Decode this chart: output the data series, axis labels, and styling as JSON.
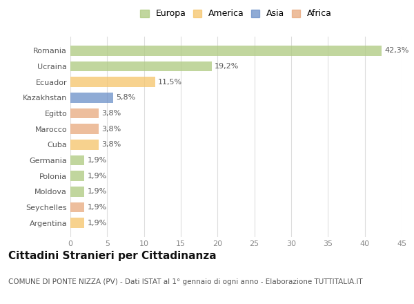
{
  "categories": [
    "Romania",
    "Ucraina",
    "Ecuador",
    "Kazakhstan",
    "Egitto",
    "Marocco",
    "Cuba",
    "Germania",
    "Polonia",
    "Moldova",
    "Seychelles",
    "Argentina"
  ],
  "values": [
    42.3,
    19.2,
    11.5,
    5.8,
    3.8,
    3.8,
    3.8,
    1.9,
    1.9,
    1.9,
    1.9,
    1.9
  ],
  "labels": [
    "42,3%",
    "19,2%",
    "11,5%",
    "5,8%",
    "3,8%",
    "3,8%",
    "3,8%",
    "1,9%",
    "1,9%",
    "1,9%",
    "1,9%",
    "1,9%"
  ],
  "colors": [
    "#adc97e",
    "#adc97e",
    "#f5c469",
    "#6a8fc8",
    "#e8a87c",
    "#e8a87c",
    "#f5c469",
    "#adc97e",
    "#adc97e",
    "#adc97e",
    "#e8a87c",
    "#f5c469"
  ],
  "legend_labels": [
    "Europa",
    "America",
    "Asia",
    "Africa"
  ],
  "legend_colors": [
    "#adc97e",
    "#f5c469",
    "#6a8fc8",
    "#e8a87c"
  ],
  "title": "Cittadini Stranieri per Cittadinanza",
  "subtitle": "COMUNE DI PONTE NIZZA (PV) - Dati ISTAT al 1° gennaio di ogni anno - Elaborazione TUTTITALIA.IT",
  "xlim": [
    0,
    45
  ],
  "xticks": [
    0,
    5,
    10,
    15,
    20,
    25,
    30,
    35,
    40,
    45
  ],
  "background_color": "#ffffff",
  "grid_color": "#dddddd",
  "bar_alpha": 0.75,
  "title_fontsize": 11,
  "subtitle_fontsize": 7.5,
  "label_fontsize": 8,
  "tick_fontsize": 8,
  "legend_fontsize": 9
}
